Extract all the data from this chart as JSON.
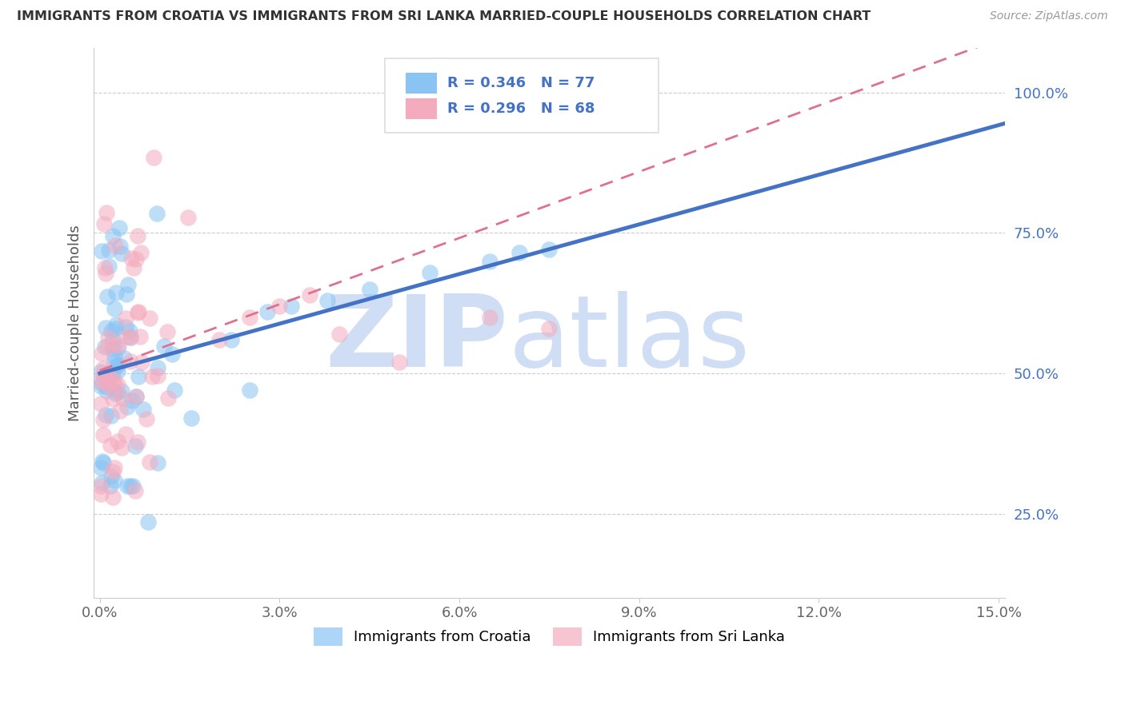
{
  "title": "IMMIGRANTS FROM CROATIA VS IMMIGRANTS FROM SRI LANKA MARRIED-COUPLE HOUSEHOLDS CORRELATION CHART",
  "source": "Source: ZipAtlas.com",
  "xlabel_croatia": "Immigrants from Croatia",
  "xlabel_srilanka": "Immigrants from Sri Lanka",
  "ylabel": "Married-couple Households",
  "r_croatia": 0.346,
  "n_croatia": 77,
  "r_srilanka": 0.296,
  "n_srilanka": 68,
  "xlim": [
    -0.001,
    0.151
  ],
  "ylim": [
    0.1,
    1.08
  ],
  "ytick_vals": [
    0.25,
    0.5,
    0.75,
    1.0
  ],
  "ytick_labels": [
    "25.0%",
    "50.0%",
    "75.0%",
    "100.0%"
  ],
  "xtick_vals": [
    0.0,
    0.03,
    0.06,
    0.09,
    0.12,
    0.15
  ],
  "xtick_labels": [
    "0.0%",
    "3.0%",
    "6.0%",
    "9.0%",
    "12.0%",
    "15.0%"
  ],
  "color_croatia": "#89C4F4",
  "color_srilanka": "#F4ABBE",
  "color_line_croatia": "#4472C4",
  "color_line_srilanka": "#E07090",
  "color_yticks": "#4472C4",
  "color_xticks": "#666666",
  "watermark_zip": "ZIP",
  "watermark_atlas": "atlas",
  "watermark_color": "#D0DEF5",
  "background_color": "#FFFFFF",
  "grid_color": "#CCCCCC",
  "legend_border_color": "#DDDDDD",
  "blue_line_y0": 0.5,
  "blue_line_y1": 0.945,
  "pink_line_y0": 0.505,
  "pink_line_y1": 0.8,
  "pink_line_x1": 0.075
}
